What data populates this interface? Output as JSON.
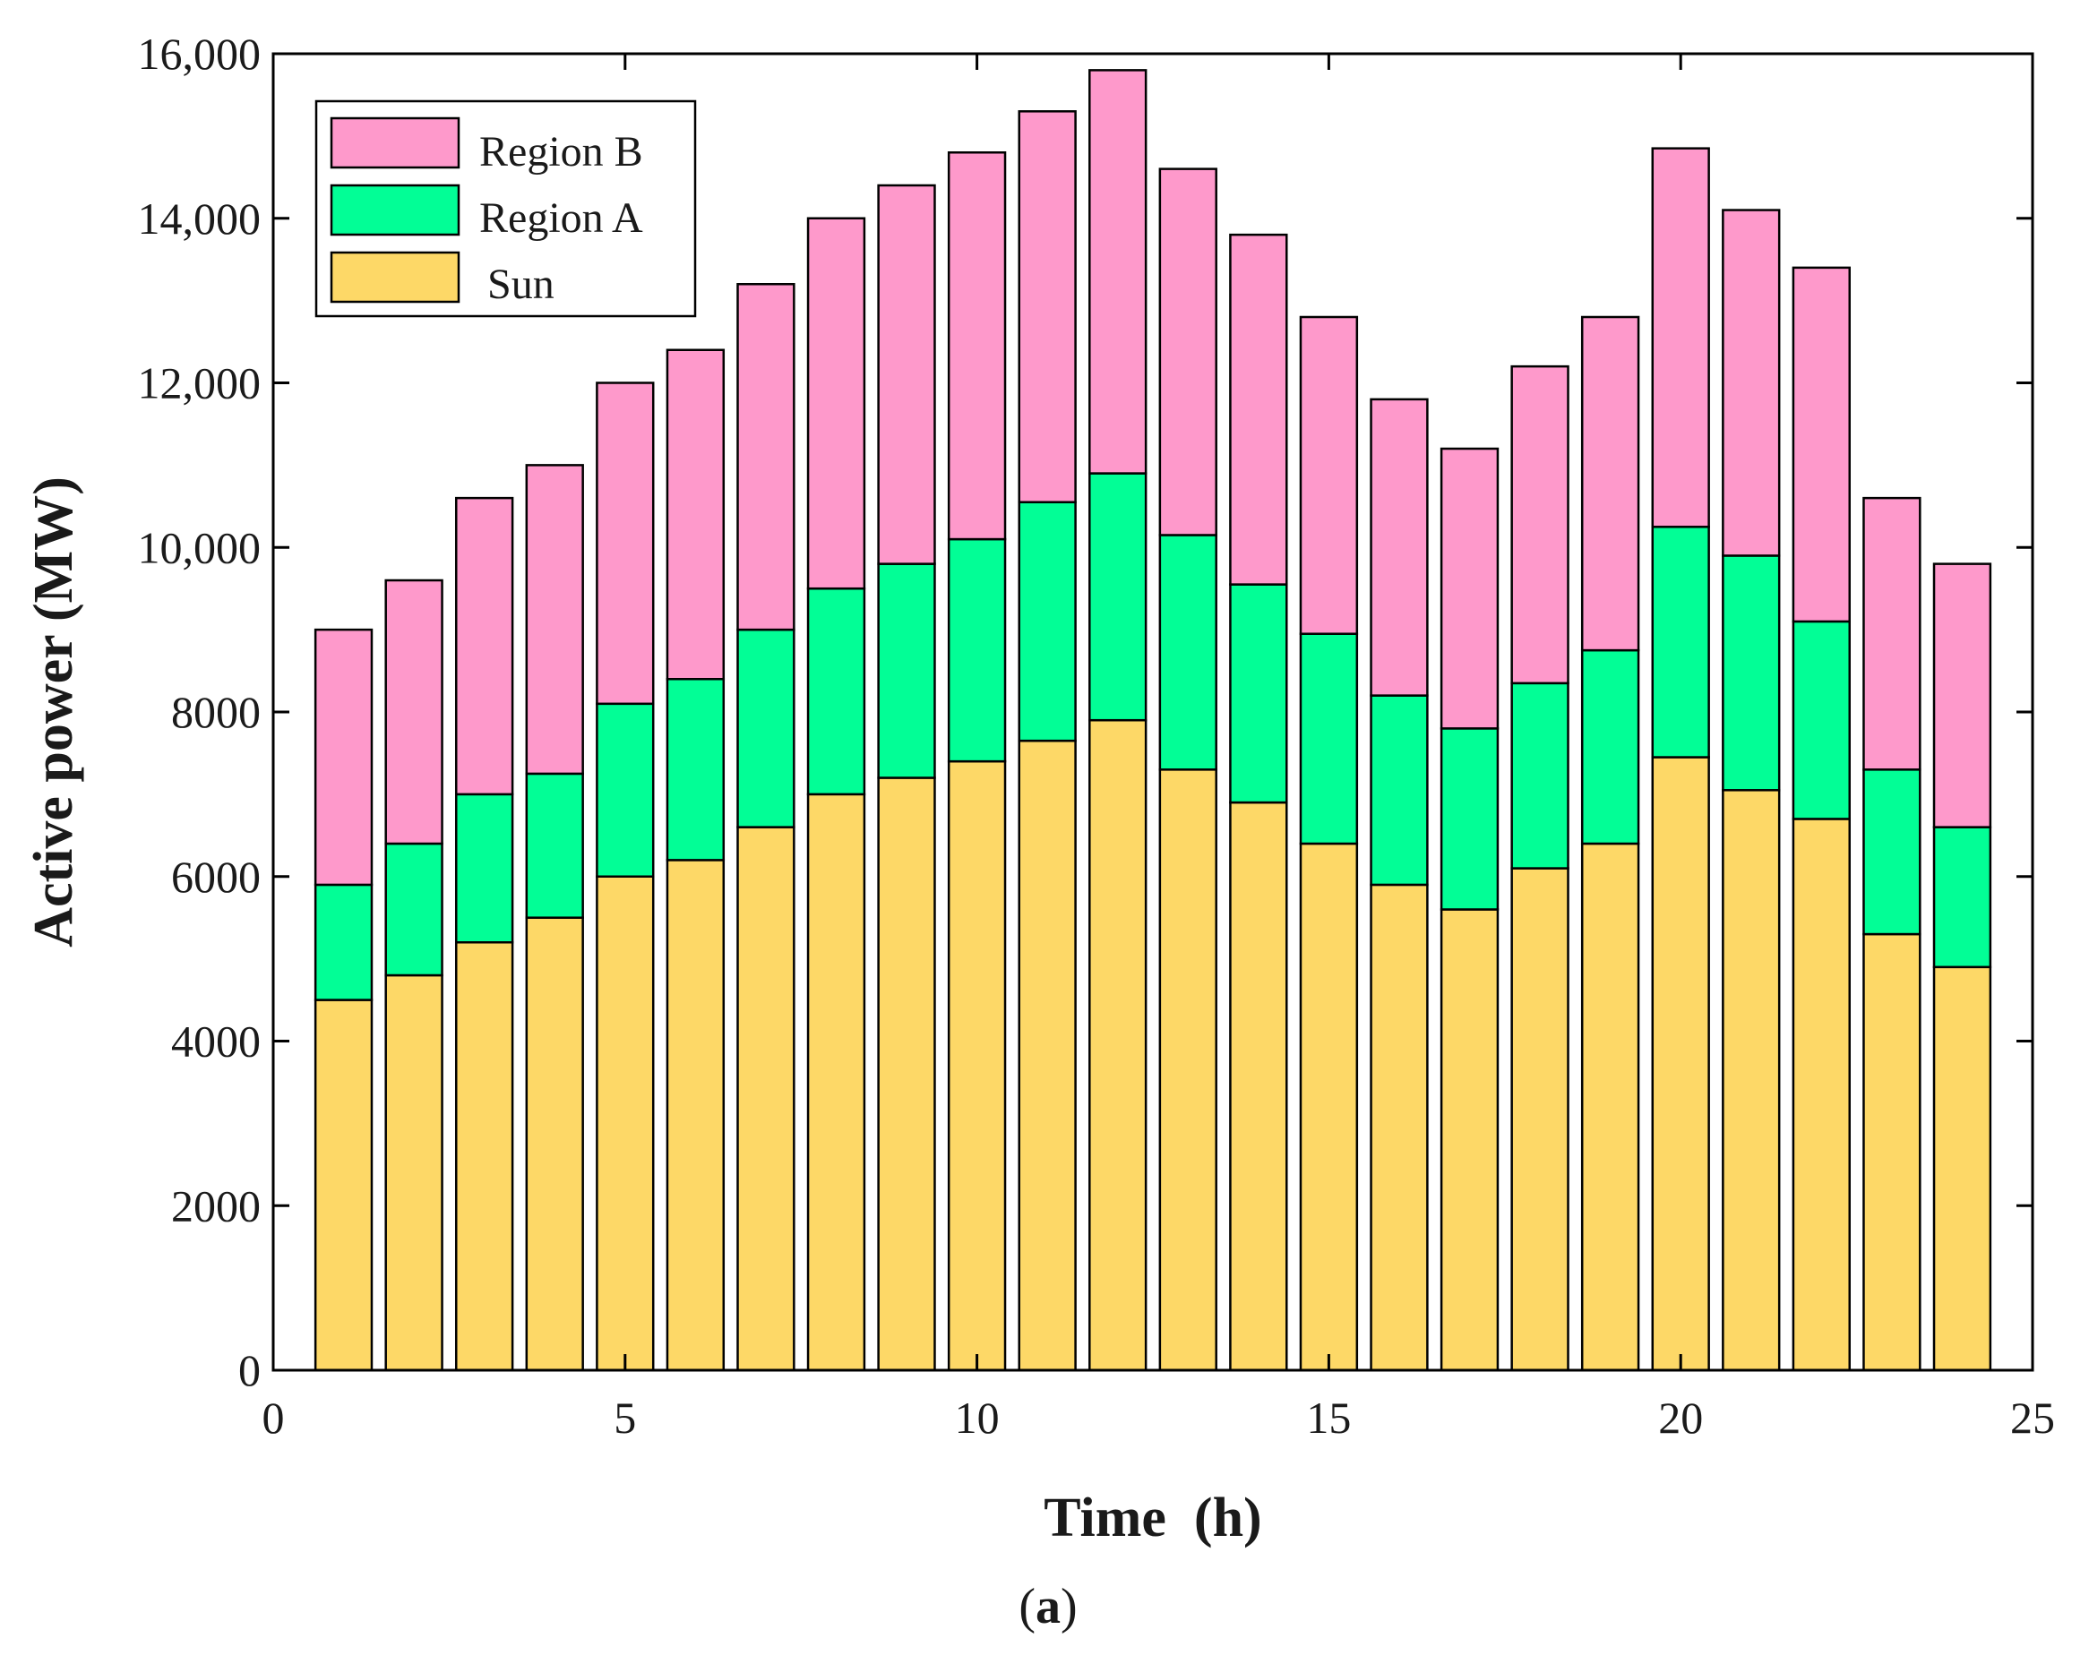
{
  "chart_data": {
    "type": "bar",
    "stacked": true,
    "xlabel": "Time  (h)",
    "ylabel": "Active power (MW)",
    "caption_letter": "a",
    "xlim": [
      0,
      25
    ],
    "ylim": [
      0,
      16000
    ],
    "x_ticks": [
      0,
      5,
      10,
      15,
      20,
      25
    ],
    "y_ticks": [
      0,
      2000,
      4000,
      6000,
      8000,
      10000,
      12000,
      14000,
      16000
    ],
    "y_tick_labels": [
      "0",
      "2000",
      "4000",
      "6000",
      "8000",
      "10,000",
      "12,000",
      "14,000",
      "16,000"
    ],
    "legend_position": "top-left",
    "x": [
      1,
      2,
      3,
      4,
      5,
      6,
      7,
      8,
      9,
      10,
      11,
      12,
      13,
      14,
      15,
      16,
      17,
      18,
      19,
      20,
      21,
      22,
      23,
      24
    ],
    "series": [
      {
        "name": "Sun",
        "color": "#fdd867",
        "values": [
          4500,
          4800,
          5200,
          5500,
          6000,
          6200,
          6600,
          7000,
          7200,
          7400,
          7650,
          7900,
          7300,
          6900,
          6400,
          5900,
          5600,
          6100,
          6400,
          7450,
          7050,
          6700,
          5300,
          4900
        ]
      },
      {
        "name": "Region A",
        "color": "#02fe96",
        "values": [
          1400,
          1600,
          1800,
          1750,
          2100,
          2200,
          2400,
          2500,
          2600,
          2700,
          2900,
          3000,
          2850,
          2650,
          2550,
          2300,
          2200,
          2250,
          2350,
          2800,
          2850,
          2400,
          2000,
          1700
        ]
      },
      {
        "name": "Region B",
        "color": "#fe99cb",
        "values": [
          3100,
          3200,
          3600,
          3750,
          3900,
          4000,
          4200,
          4500,
          4600,
          4700,
          4750,
          4900,
          4450,
          4250,
          3850,
          3600,
          3400,
          3850,
          4050,
          4600,
          4200,
          4300,
          3300,
          3200
        ]
      }
    ]
  }
}
